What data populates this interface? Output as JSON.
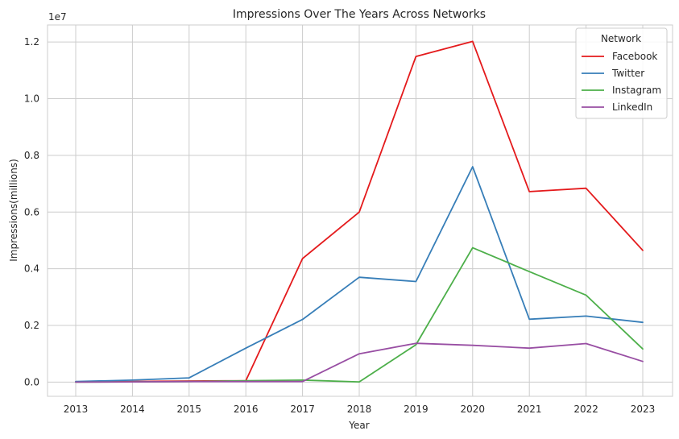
{
  "chart_data": {
    "type": "line",
    "title": "Impressions Over The Years Across Networks",
    "xlabel": "Year",
    "ylabel": "Impressions(millions)",
    "y_scale_note": "1e7",
    "categories": [
      "2013",
      "2014",
      "2015",
      "2016",
      "2017",
      "2018",
      "2019",
      "2020",
      "2021",
      "2022",
      "2023"
    ],
    "ylim": [
      -0.05,
      1.26
    ],
    "yticks": [
      "0.0",
      "0.2",
      "0.4",
      "0.6",
      "0.8",
      "1.0",
      "1.2"
    ],
    "grid": true,
    "legend": {
      "title": "Network",
      "placement": "top-right"
    },
    "series": [
      {
        "name": "Facebook",
        "color": "#e41a1c",
        "values": [
          0.001,
          0.002,
          0.004,
          0.005,
          0.436,
          0.6,
          1.149,
          1.202,
          0.672,
          0.684,
          0.465
        ]
      },
      {
        "name": "Twitter",
        "color": "#377eb8",
        "values": [
          0.002,
          0.007,
          0.015,
          0.12,
          0.221,
          0.37,
          0.355,
          0.76,
          0.222,
          0.233,
          0.211
        ]
      },
      {
        "name": "Instagram",
        "color": "#4daf4a",
        "values": [
          0.0,
          0.001,
          0.002,
          0.005,
          0.007,
          0.001,
          0.132,
          0.474,
          0.39,
          0.307,
          0.117
        ]
      },
      {
        "name": "LinkedIn",
        "color": "#984ea3",
        "values": [
          0.0,
          0.001,
          0.002,
          0.002,
          0.002,
          0.1,
          0.137,
          0.13,
          0.12,
          0.136,
          0.073
        ]
      }
    ]
  }
}
